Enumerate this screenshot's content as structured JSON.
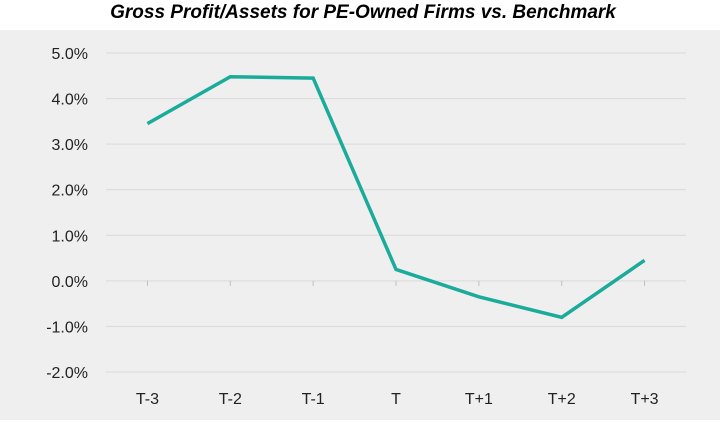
{
  "chart_data": {
    "type": "line",
    "title": "Gross Profit/Assets for PE-Owned Firms vs. Benchmark",
    "categories": [
      "T-3",
      "T-2",
      "T-1",
      "T",
      "T+1",
      "T+2",
      "T+3"
    ],
    "series": [
      {
        "values": [
          3.45,
          4.48,
          4.45,
          0.25,
          -0.35,
          -0.8,
          0.45
        ]
      }
    ],
    "y_ticks": [
      "5.0%",
      "4.0%",
      "3.0%",
      "2.0%",
      "1.0%",
      "0.0%",
      "-1.0%",
      "-2.0%"
    ],
    "ylim": [
      -2.0,
      5.0
    ],
    "grid": true,
    "xlabel": "",
    "ylabel": "",
    "colors": {
      "line": "#1aab9b",
      "plot_bg": "#efefef",
      "grid": "#d9d9d9"
    }
  }
}
